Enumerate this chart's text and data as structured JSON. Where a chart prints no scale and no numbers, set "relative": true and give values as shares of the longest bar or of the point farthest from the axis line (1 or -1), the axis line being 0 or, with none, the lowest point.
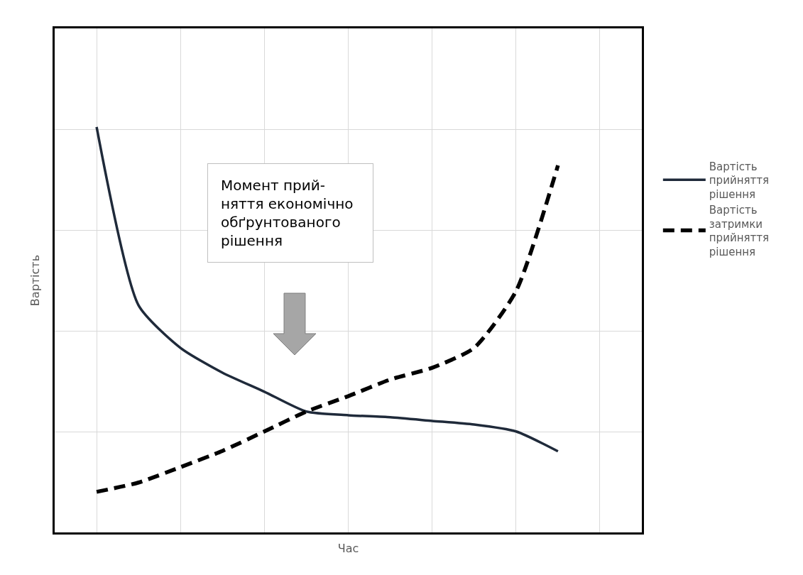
{
  "chart_data": {
    "type": "line",
    "relative": true,
    "xlabel": "Час",
    "ylabel": "Вартість",
    "categories": [
      null,
      null,
      null,
      null,
      null,
      null,
      null,
      null,
      null,
      null,
      null,
      null
    ],
    "series": [
      {
        "name": "Вартість прийняття рішення",
        "color": "#1f2a3a",
        "line_style": "solid",
        "values": [
          1.0,
          0.56,
          0.455,
          0.394,
          0.347,
          0.298,
          0.289,
          0.284,
          0.275,
          0.266,
          0.249,
          0.2
        ]
      },
      {
        "name": "Вартість затримки прийняття рішення",
        "color": "#000000",
        "line_style": "dashed",
        "values": [
          0.1,
          0.123,
          0.161,
          0.201,
          0.249,
          0.298,
          0.336,
          0.377,
          0.406,
          0.455,
          0.595,
          0.905
        ]
      }
    ],
    "annotations": [
      "Момент прий-\nняття економічно\nобґрунтованого\nрішення"
    ],
    "grid": true,
    "legend": "right",
    "marker": "none"
  }
}
